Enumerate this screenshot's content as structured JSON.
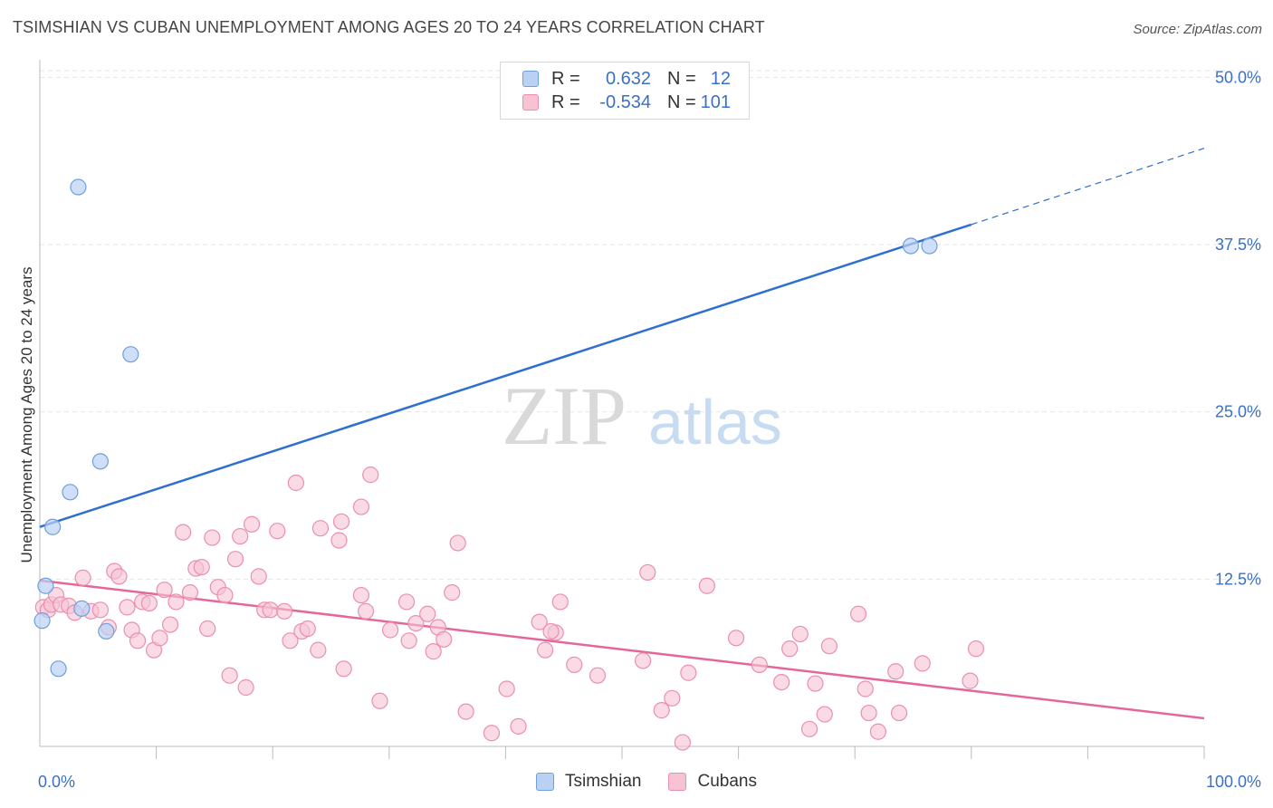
{
  "title": "TSIMSHIAN VS CUBAN UNEMPLOYMENT AMONG AGES 20 TO 24 YEARS CORRELATION CHART",
  "source": "Source: ZipAtlas.com",
  "watermark": {
    "zip": "ZIP",
    "atlas": "atlas"
  },
  "legend_top": {
    "rows": [
      {
        "r_label": "R =",
        "r_value": "0.632",
        "n_label": "N =",
        "n_value": "12",
        "color": "#6fa0e0"
      },
      {
        "r_label": "R =",
        "r_value": "-0.534",
        "n_label": "N =",
        "n_value": "101",
        "color": "#ee8fb0"
      }
    ]
  },
  "legend_bottom": [
    {
      "label": "Tsimshian",
      "color": "#6fa0e0"
    },
    {
      "label": "Cubans",
      "color": "#ee8fb0"
    }
  ],
  "colors": {
    "tsimshian_fill": "#b9d1f3",
    "tsimshian_stroke": "#6f9fdd",
    "tsimshian_line": "#2f6fd0",
    "cubans_fill": "#f7c3d3",
    "cubans_stroke": "#ea8fad",
    "cubans_line": "#e5679a",
    "tick_label": "#3a70c8",
    "grid": "#e5e5e5"
  },
  "chart_data": {
    "type": "scatter",
    "title": "TSIMSHIAN VS CUBAN UNEMPLOYMENT AMONG AGES 20 TO 24 YEARS CORRELATION CHART",
    "xlabel": "",
    "ylabel": "Unemployment Among Ages 20 to 24 years",
    "xlim": [
      0,
      100
    ],
    "ylim": [
      0,
      50.5
    ],
    "x_tick_labels": [
      "0.0%",
      "100.0%"
    ],
    "y_ticks": [
      12.5,
      25,
      37.5,
      50
    ],
    "y_tick_labels": [
      "12.5%",
      "25.0%",
      "37.5%",
      "50.0%"
    ],
    "grid": true,
    "legend_position": "top-center",
    "series": [
      {
        "name": "Tsimshian",
        "r": 0.632,
        "n": 12,
        "points": [
          [
            0.2,
            9.4
          ],
          [
            0.5,
            12.0
          ],
          [
            1.1,
            16.4
          ],
          [
            2.6,
            19.0
          ],
          [
            3.3,
            41.8
          ],
          [
            5.7,
            8.6
          ],
          [
            3.6,
            10.3
          ],
          [
            5.2,
            21.3
          ],
          [
            7.8,
            29.3
          ],
          [
            1.6,
            5.8
          ],
          [
            74.8,
            37.4
          ],
          [
            76.4,
            37.4
          ]
        ],
        "trend": {
          "x": [
            0,
            80
          ],
          "y": [
            16.4,
            39.0
          ]
        },
        "trend_dashed": {
          "x": [
            80,
            100
          ],
          "y": [
            39.0,
            44.7
          ]
        }
      },
      {
        "name": "Cubans",
        "r": -0.534,
        "n": 101,
        "points": [
          [
            0.3,
            10.4
          ],
          [
            0.7,
            10.2
          ],
          [
            1.0,
            10.6
          ],
          [
            1.4,
            11.3
          ],
          [
            1.8,
            10.6
          ],
          [
            2.5,
            10.5
          ],
          [
            3.0,
            10.0
          ],
          [
            3.7,
            12.6
          ],
          [
            4.4,
            10.1
          ],
          [
            5.2,
            10.2
          ],
          [
            5.9,
            8.9
          ],
          [
            6.4,
            13.1
          ],
          [
            6.8,
            12.7
          ],
          [
            7.5,
            10.4
          ],
          [
            7.9,
            8.7
          ],
          [
            8.4,
            7.9
          ],
          [
            8.8,
            10.8
          ],
          [
            9.4,
            10.7
          ],
          [
            9.8,
            7.2
          ],
          [
            10.3,
            8.1
          ],
          [
            10.7,
            11.7
          ],
          [
            11.2,
            9.1
          ],
          [
            11.7,
            10.8
          ],
          [
            12.3,
            16.0
          ],
          [
            12.9,
            11.5
          ],
          [
            13.4,
            13.3
          ],
          [
            13.9,
            13.4
          ],
          [
            14.4,
            8.8
          ],
          [
            14.8,
            15.6
          ],
          [
            15.3,
            11.9
          ],
          [
            15.9,
            11.3
          ],
          [
            16.3,
            5.3
          ],
          [
            16.8,
            14.0
          ],
          [
            17.2,
            15.7
          ],
          [
            17.7,
            4.4
          ],
          [
            18.2,
            16.6
          ],
          [
            18.8,
            12.7
          ],
          [
            19.3,
            10.2
          ],
          [
            19.8,
            10.2
          ],
          [
            20.4,
            16.1
          ],
          [
            21.0,
            10.1
          ],
          [
            21.5,
            7.9
          ],
          [
            22.0,
            19.7
          ],
          [
            22.5,
            8.6
          ],
          [
            23.0,
            8.8
          ],
          [
            24.1,
            16.3
          ],
          [
            23.9,
            7.2
          ],
          [
            25.7,
            15.4
          ],
          [
            25.9,
            16.8
          ],
          [
            26.1,
            5.8
          ],
          [
            27.6,
            17.9
          ],
          [
            28.4,
            20.3
          ],
          [
            27.6,
            11.3
          ],
          [
            28.0,
            10.1
          ],
          [
            29.2,
            3.4
          ],
          [
            30.1,
            8.7
          ],
          [
            31.5,
            10.8
          ],
          [
            31.7,
            7.9
          ],
          [
            32.3,
            9.2
          ],
          [
            33.3,
            9.9
          ],
          [
            33.8,
            7.1
          ],
          [
            34.2,
            8.9
          ],
          [
            34.7,
            8.0
          ],
          [
            35.4,
            11.5
          ],
          [
            35.9,
            15.2
          ],
          [
            36.6,
            2.6
          ],
          [
            38.8,
            1.0
          ],
          [
            40.1,
            4.3
          ],
          [
            41.1,
            1.5
          ],
          [
            42.9,
            9.3
          ],
          [
            43.4,
            7.2
          ],
          [
            44.3,
            8.5
          ],
          [
            43.9,
            8.6
          ],
          [
            44.7,
            10.8
          ],
          [
            45.9,
            6.1
          ],
          [
            47.9,
            5.3
          ],
          [
            51.8,
            6.4
          ],
          [
            53.4,
            2.7
          ],
          [
            52.2,
            13.0
          ],
          [
            54.3,
            3.6
          ],
          [
            55.2,
            0.3
          ],
          [
            55.7,
            5.5
          ],
          [
            57.3,
            12.0
          ],
          [
            59.8,
            8.1
          ],
          [
            61.8,
            6.1
          ],
          [
            63.7,
            4.8
          ],
          [
            64.4,
            7.3
          ],
          [
            65.3,
            8.4
          ],
          [
            66.1,
            1.3
          ],
          [
            66.6,
            4.7
          ],
          [
            67.4,
            2.4
          ],
          [
            67.8,
            7.5
          ],
          [
            70.3,
            9.9
          ],
          [
            70.9,
            4.3
          ],
          [
            71.2,
            2.5
          ],
          [
            72.0,
            1.1
          ],
          [
            73.5,
            5.6
          ],
          [
            73.8,
            2.5
          ],
          [
            75.8,
            6.2
          ],
          [
            79.9,
            4.9
          ],
          [
            80.4,
            7.3
          ]
        ],
        "trend": {
          "x": [
            0,
            100
          ],
          "y": [
            12.4,
            2.1
          ]
        }
      }
    ]
  }
}
